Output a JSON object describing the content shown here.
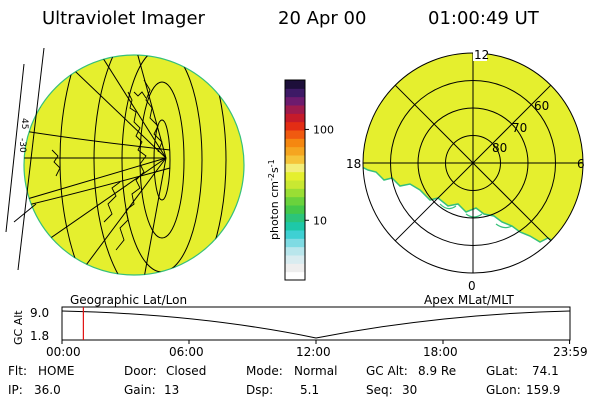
{
  "header": {
    "title": "Ultraviolet Imager",
    "date": "20 Apr 00",
    "time": "01:00:49 UT"
  },
  "colors": {
    "emission_fill": "#e5ef2e",
    "emission_edge": "#36c07a",
    "marker": "#e11010",
    "line": "#000000"
  },
  "left_panel": {
    "caption": "Geographic Lat/Lon",
    "edge_labels": [
      "45",
      "-30"
    ]
  },
  "right_panel": {
    "caption": "Apex MLat/MLT",
    "mlt_labels": [
      "12",
      "18",
      "6",
      "0"
    ],
    "mlat_labels": [
      "60",
      "70",
      "80"
    ]
  },
  "colorbar": {
    "unit_main": "photon cm",
    "unit_exp1": "-2",
    "unit_s": "s",
    "unit_exp2": "-1",
    "ticks": [
      {
        "label": "100",
        "value": 100
      },
      {
        "label": "10",
        "value": 10
      }
    ],
    "colors_bottom_to_top": [
      "#ffffff",
      "#eeeeee",
      "#d9ecf0",
      "#b9e6ec",
      "#7fdbe3",
      "#3fd0d3",
      "#1ec8a8",
      "#2cc47a",
      "#44c84a",
      "#6ad23c",
      "#9ade34",
      "#c9e832",
      "#e5ef2e",
      "#f3ee7a",
      "#f5c43a",
      "#f5a520",
      "#f58710",
      "#f05a10",
      "#e32d14",
      "#c51b2a",
      "#9e1b4d",
      "#6d1b6e",
      "#3e1a66",
      "#1d0f3a"
    ]
  },
  "timeline": {
    "axis_label": "GC Alt",
    "y_ticks": [
      "9.0",
      "1.8"
    ],
    "x_ticks": [
      "00:00",
      "06:00",
      "12:00",
      "18:00",
      "23:59"
    ],
    "x_tick_hours": [
      0,
      6,
      12,
      18,
      23.98
    ],
    "marker_hour": 1.01
  },
  "status": {
    "flt": {
      "label": "Flt:",
      "value": "HOME"
    },
    "ip": {
      "label": "IP:",
      "value": "36.0"
    },
    "door": {
      "label": "Door:",
      "value": "Closed"
    },
    "gain": {
      "label": "Gain:",
      "value": "13"
    },
    "mode": {
      "label": "Mode:",
      "value": "Normal"
    },
    "dsp": {
      "label": "Dsp:",
      "value": "5.1"
    },
    "gcalt": {
      "label": "GC Alt:",
      "value": "8.9 Re"
    },
    "seq": {
      "label": "Seq:",
      "value": "30"
    },
    "glat": {
      "label": "GLat:",
      "value": "74.1"
    },
    "glon": {
      "label": "GLon:",
      "value": "159.9"
    }
  }
}
